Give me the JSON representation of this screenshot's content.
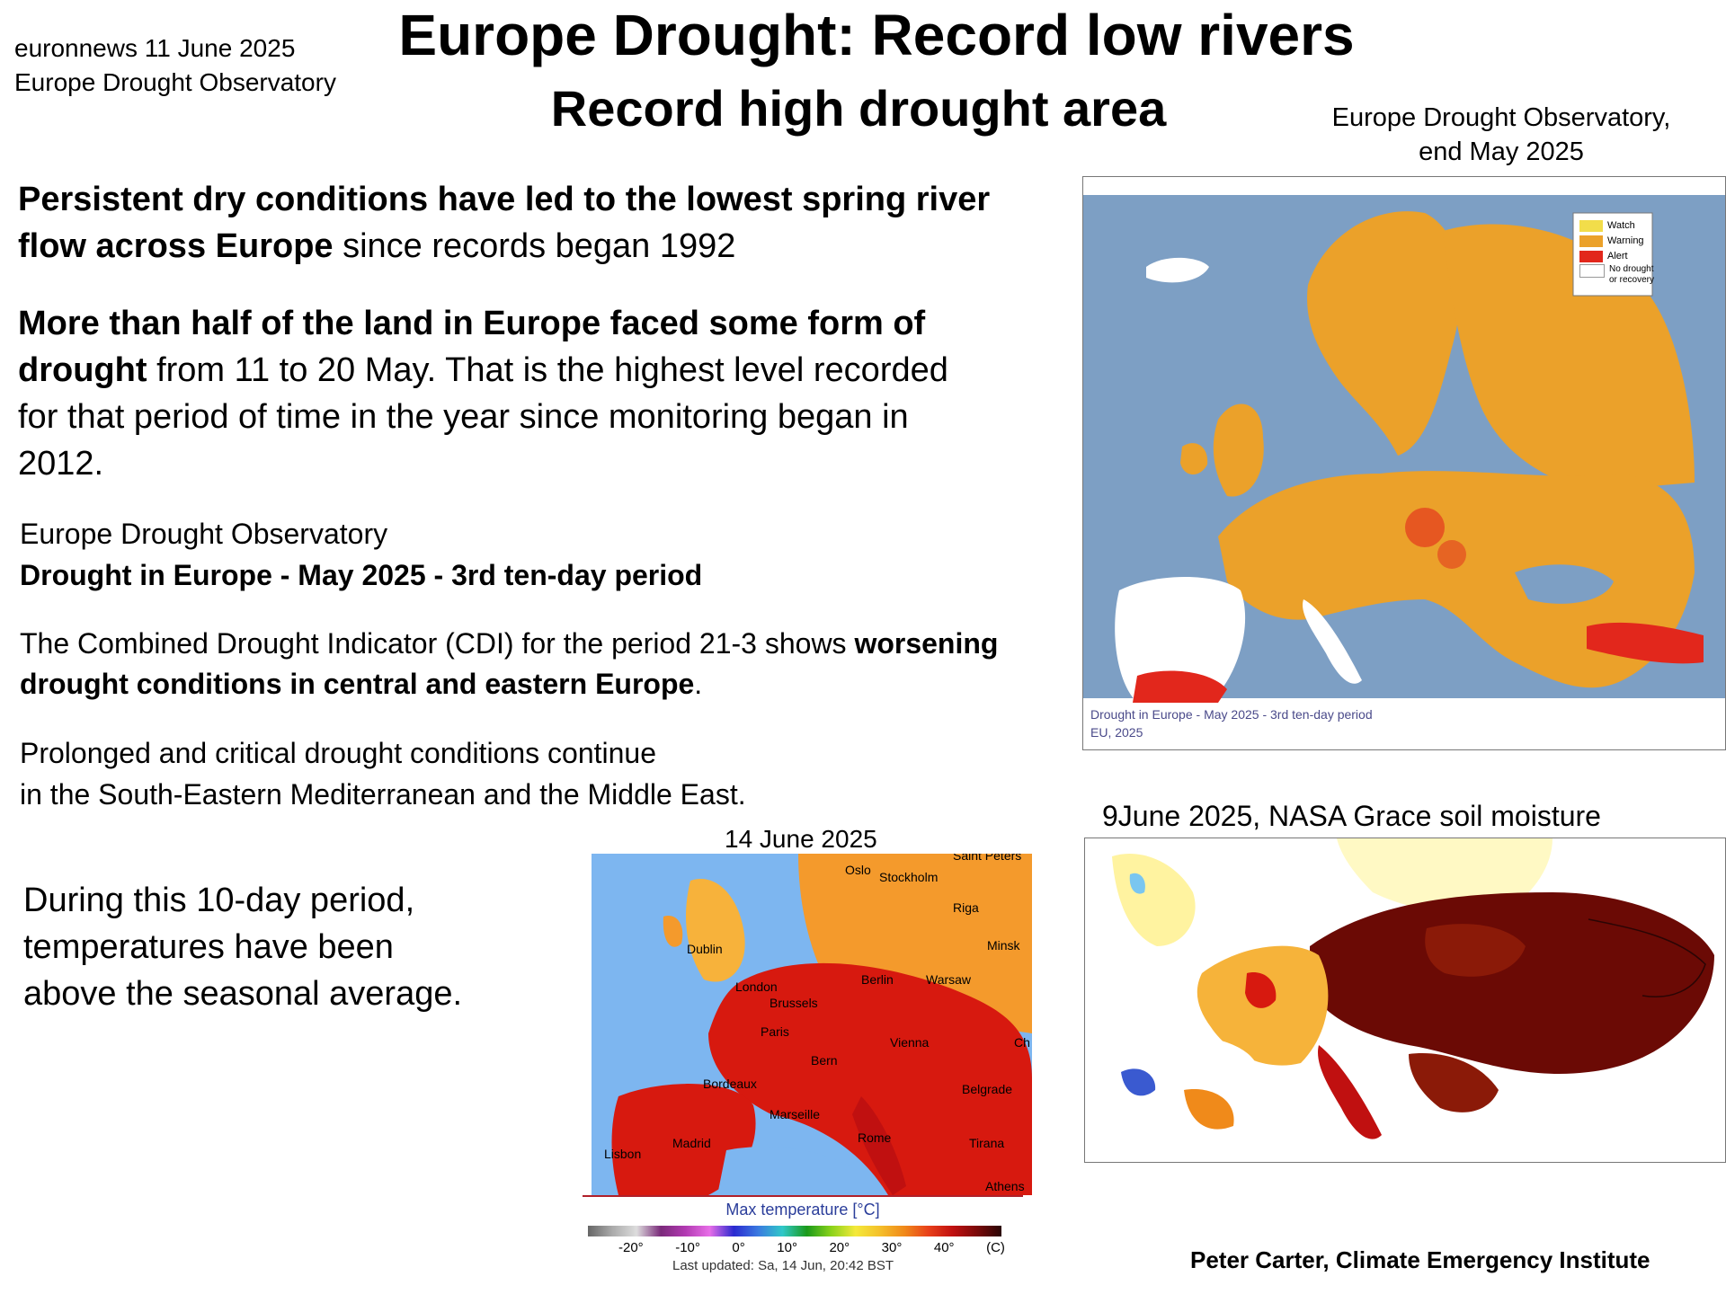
{
  "source": {
    "line1": "euronnews 11 June 2025",
    "line2": "Europe Drought Observatory"
  },
  "title": {
    "line1": "Europe Drought: Record low rivers",
    "line2": "Record high drought area"
  },
  "para1": {
    "bold": "Persistent dry conditions have led to the lowest spring river flow across Europe",
    "normal": "since records began 1992"
  },
  "para2": {
    "bold": "More than half of the land in Europe faced some form of drought",
    "normal": "from 11 to 20 May. That is the highest level recorded for that period of time in the year since monitoring began in 2012."
  },
  "edo_heading": {
    "line1": "Europe Drought Observatory",
    "line2": "Drought in Europe - May 2025 - 3rd ten-day period"
  },
  "cdi": {
    "normal1": "The Combined Drought Indicator (CDI) for the period 21-3 shows",
    "bold": "worsening drought conditions in central and eastern Europe",
    "end": "."
  },
  "prolonged": {
    "line1": "Prolonged and critical drought conditions continue",
    "line2": "in the  South-Eastern Mediterranean and the Middle East."
  },
  "temperature_note": {
    "line1": "During this 10-day period,",
    "line2": "temperatures have been",
    "line3": "above the seasonal average."
  },
  "drought_map": {
    "caption_top": {
      "line1": "Europe Drought Observatory,",
      "line2": "end May 2025"
    },
    "legend": [
      {
        "label": "Watch",
        "color": "#f2dd4a"
      },
      {
        "label": "Warning",
        "color": "#eba12a"
      },
      {
        "label": "Alert",
        "color": "#e2271c"
      },
      {
        "label": "No drought or recovery",
        "color": "#ffffff"
      }
    ],
    "footer1": "Drought in Europe - May 2025 - 3rd ten-day period",
    "footer2": "EU, 2025",
    "colors": {
      "sea": "#7d9fc4",
      "land": "#ffffff",
      "warning": "#eba12a",
      "alert": "#e2271c"
    }
  },
  "temp_map": {
    "date": "14 June 2025",
    "cities": [
      "Oslo",
      "Stockholm",
      "Riga",
      "Dublin",
      "Minsk",
      "London",
      "Berlin",
      "Warsaw",
      "Brussels",
      "Paris",
      "Vienna",
      "Bern",
      "Bordeaux",
      "Belgrade",
      "Marseille",
      "Madrid",
      "Rome",
      "Tirana",
      "Lisbon",
      "Athens",
      "Saint Peters",
      "Ch"
    ],
    "scale_title": "Max temperature [°C]",
    "scale_ticks": [
      "-20°",
      "-10°",
      "0°",
      "10°",
      "20°",
      "30°",
      "40°",
      "(C)"
    ],
    "updated": "Last updated: Sa, 14 Jun, 20:42 BST"
  },
  "soil_map": {
    "caption": "9June 2025, NASA Grace soil moisture"
  },
  "credit": "Peter Carter,  Climate Emergency Institute"
}
